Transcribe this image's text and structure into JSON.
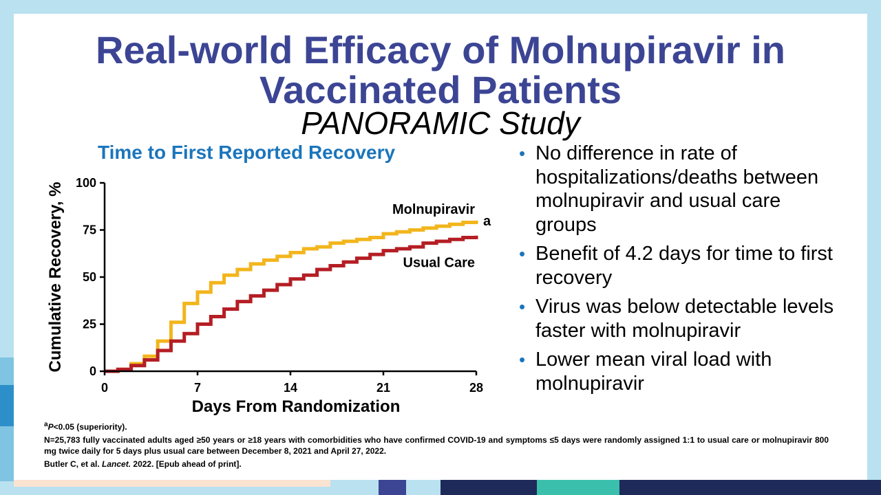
{
  "title": "Real-world Efficacy of Molnupiravir in Vaccinated Patients",
  "subtitle": "PANORAMIC Study",
  "chart_data": {
    "type": "line",
    "step": true,
    "title": "Time to First Reported Recovery",
    "xlabel": "Days From Randomization",
    "ylabel": "Cumulative Recovery, %",
    "xlim": [
      0,
      28
    ],
    "ylim": [
      0,
      100
    ],
    "xticks": [
      0,
      7,
      14,
      21,
      28
    ],
    "yticks": [
      0,
      25,
      50,
      75,
      100
    ],
    "series": [
      {
        "name": "Molnupiravir",
        "color": "#f2b51c",
        "annotation": "a",
        "x": [
          0,
          1,
          2,
          3,
          4,
          5,
          6,
          7,
          8,
          9,
          10,
          11,
          12,
          13,
          14,
          15,
          16,
          17,
          18,
          19,
          20,
          21,
          22,
          23,
          24,
          25,
          26,
          27,
          28
        ],
        "y": [
          0,
          1,
          4,
          8,
          16,
          26,
          36,
          42,
          47,
          51,
          54,
          57,
          59,
          61,
          63,
          65,
          66,
          68,
          69,
          70,
          71,
          73,
          74,
          75,
          76,
          77,
          78,
          79,
          80
        ]
      },
      {
        "name": "Usual Care",
        "color": "#b41e24",
        "x": [
          0,
          1,
          2,
          3,
          4,
          5,
          6,
          7,
          8,
          9,
          10,
          11,
          12,
          13,
          14,
          15,
          16,
          17,
          18,
          19,
          20,
          21,
          22,
          23,
          24,
          25,
          26,
          27,
          28
        ],
        "y": [
          0,
          1,
          3,
          6,
          11,
          16,
          20,
          25,
          29,
          33,
          37,
          40,
          43,
          46,
          49,
          51,
          54,
          56,
          58,
          60,
          62,
          64,
          65,
          66,
          68,
          69,
          70,
          71,
          72
        ]
      }
    ]
  },
  "bullets": [
    "No difference in rate of hospitalizations/deaths between molnupiravir and usual care groups",
    "Benefit of 4.2 days for time to first recovery",
    "Virus was below detectable levels faster with molnupiravir",
    "Lower mean viral load with molnupiravir"
  ],
  "footnotes": {
    "superscript": "a",
    "p_italic": "P",
    "note_a_rest": "<0.05 (superiority).",
    "methods": "N=25,783 fully vaccinated adults aged ≥50 years or ≥18 years with comorbidities who have confirmed COVID-19 and symptoms ≤5 days were randomly assigned 1:1 to usual care or molnupiravir 800 mg twice daily for 5 days plus usual care between December 8, 2021 and April 27, 2022.",
    "citation_authors": "Butler C, et al.",
    "citation_journal": "Lancet.",
    "citation_rest": "2022. [Epub ahead of print]."
  },
  "colors": {
    "title": "#3c4594",
    "chart_title": "#1b75bb",
    "bullet_dot": "#1b75bb",
    "background": "#b9e1ef"
  }
}
